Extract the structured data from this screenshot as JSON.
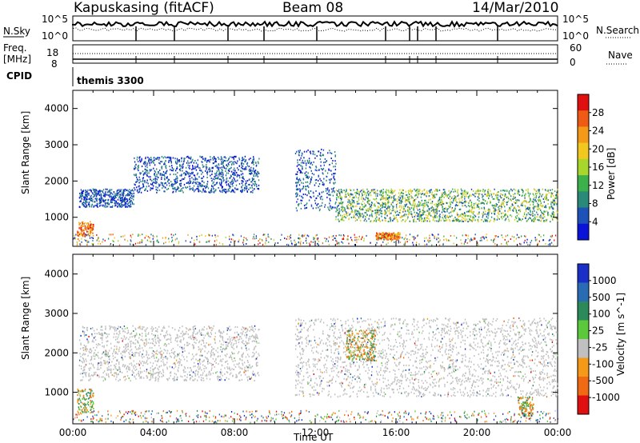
{
  "header": {
    "station": "Kapuskasing (fitACF)",
    "beam": "Beam 08",
    "date": "14/Mar/2010"
  },
  "top_panels": {
    "nsky_label": "N.Sky",
    "nsky_ticks": [
      "10^5",
      "10^0"
    ],
    "nsearch_label": "N.Search",
    "nsearch_ticks": [
      "10^5",
      "10^0"
    ],
    "freq_label": "Freq.",
    "freq_unit": "[MHz]",
    "freq_ticks": [
      "18",
      "8"
    ],
    "nave_label": "Nave",
    "nave_ticks": [
      "60",
      "0"
    ],
    "cpid_label": "CPID",
    "cpid_value": "themis 3300"
  },
  "chart_data": [
    {
      "type": "heatmap",
      "name": "power",
      "xlabel": "",
      "ylabel": "Slant Range [km]",
      "xlim": [
        0,
        24
      ],
      "ylim": [
        200,
        4500
      ],
      "yticks": [
        "1000",
        "2000",
        "3000",
        "4000"
      ],
      "colorbar_label": "Power [dB]",
      "colorbar_ticks": [
        "4",
        "8",
        "12",
        "16",
        "20",
        "24",
        "28"
      ],
      "colors": [
        "#0a14d8",
        "#1d52b8",
        "#2a8a7a",
        "#3cb04a",
        "#a8d62a",
        "#f2c81e",
        "#f59a18",
        "#ef5a14",
        "#e01010"
      ],
      "echo_regions": [
        {
          "t_start": 0.2,
          "t_end": 1.0,
          "r_low": 500,
          "r_high": 900,
          "level": "high"
        },
        {
          "t_start": 0.3,
          "t_end": 3.0,
          "r_low": 1300,
          "r_high": 1800,
          "level": "low"
        },
        {
          "t_start": 3.0,
          "t_end": 9.2,
          "r_low": 1700,
          "r_high": 2700,
          "level": "low"
        },
        {
          "t_start": 11.0,
          "t_end": 13.0,
          "r_low": 1200,
          "r_high": 2900,
          "level": "low"
        },
        {
          "t_start": 13.0,
          "t_end": 24.0,
          "r_low": 900,
          "r_high": 1800,
          "level": "mid"
        },
        {
          "t_start": 15.0,
          "t_end": 16.2,
          "r_low": 400,
          "r_high": 600,
          "level": "high"
        }
      ]
    },
    {
      "type": "heatmap",
      "name": "velocity",
      "xlabel": "Time UT",
      "ylabel": "Slant Range [km]",
      "xlim": [
        0,
        24
      ],
      "ylim": [
        200,
        4500
      ],
      "xticks": [
        "00:00",
        "04:00",
        "08:00",
        "12:00",
        "16:00",
        "20:00",
        "00:00"
      ],
      "yticks": [
        "1000",
        "2000",
        "3000",
        "4000"
      ],
      "colorbar_label": "Velocity [m s^-1]",
      "colorbar_ticks": [
        "1000",
        "500",
        "100",
        "25",
        "-25",
        "-100",
        "-500",
        "-1000"
      ],
      "colors": [
        "#1a2ec8",
        "#2a6cb4",
        "#2c8a5a",
        "#5cc83c",
        "#c0c0c0",
        "#f59a18",
        "#ef6a12",
        "#e01010"
      ],
      "echo_regions": [
        {
          "t_start": 0.2,
          "t_end": 1.0,
          "r_low": 500,
          "r_high": 1100,
          "level": "orange"
        },
        {
          "t_start": 0.3,
          "t_end": 9.2,
          "r_low": 1300,
          "r_high": 2700,
          "level": "grey"
        },
        {
          "t_start": 11.0,
          "t_end": 24.0,
          "r_low": 900,
          "r_high": 2900,
          "level": "grey"
        },
        {
          "t_start": 13.5,
          "t_end": 15.0,
          "r_low": 1800,
          "r_high": 2600,
          "level": "orange"
        },
        {
          "t_start": 22.0,
          "t_end": 22.8,
          "r_low": 400,
          "r_high": 900,
          "level": "orange"
        }
      ]
    }
  ]
}
